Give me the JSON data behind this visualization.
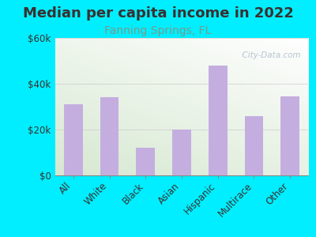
{
  "title": "Median per capita income in 2022",
  "subtitle": "Fanning Springs, FL",
  "categories": [
    "All",
    "White",
    "Black",
    "Asian",
    "Hispanic",
    "Multirace",
    "Other"
  ],
  "values": [
    31000,
    34000,
    12000,
    20000,
    48000,
    26000,
    34500
  ],
  "bar_color": "#c4aee0",
  "background_outer": "#00eeff",
  "background_inner_left": "#d6e8c8",
  "background_inner_right": "#f0f5f0",
  "title_color": "#3a3030",
  "subtitle_color": "#7a9a8a",
  "axis_label_color": "#3a3030",
  "tick_color": "#3a3030",
  "ylim": [
    0,
    60000
  ],
  "yticks": [
    0,
    20000,
    40000,
    60000
  ],
  "ytick_labels": [
    "$0",
    "$20k",
    "$40k",
    "$60k"
  ],
  "title_fontsize": 13,
  "subtitle_fontsize": 10,
  "watermark": "  City-Data.com",
  "watermark_color": "#aabbcc"
}
